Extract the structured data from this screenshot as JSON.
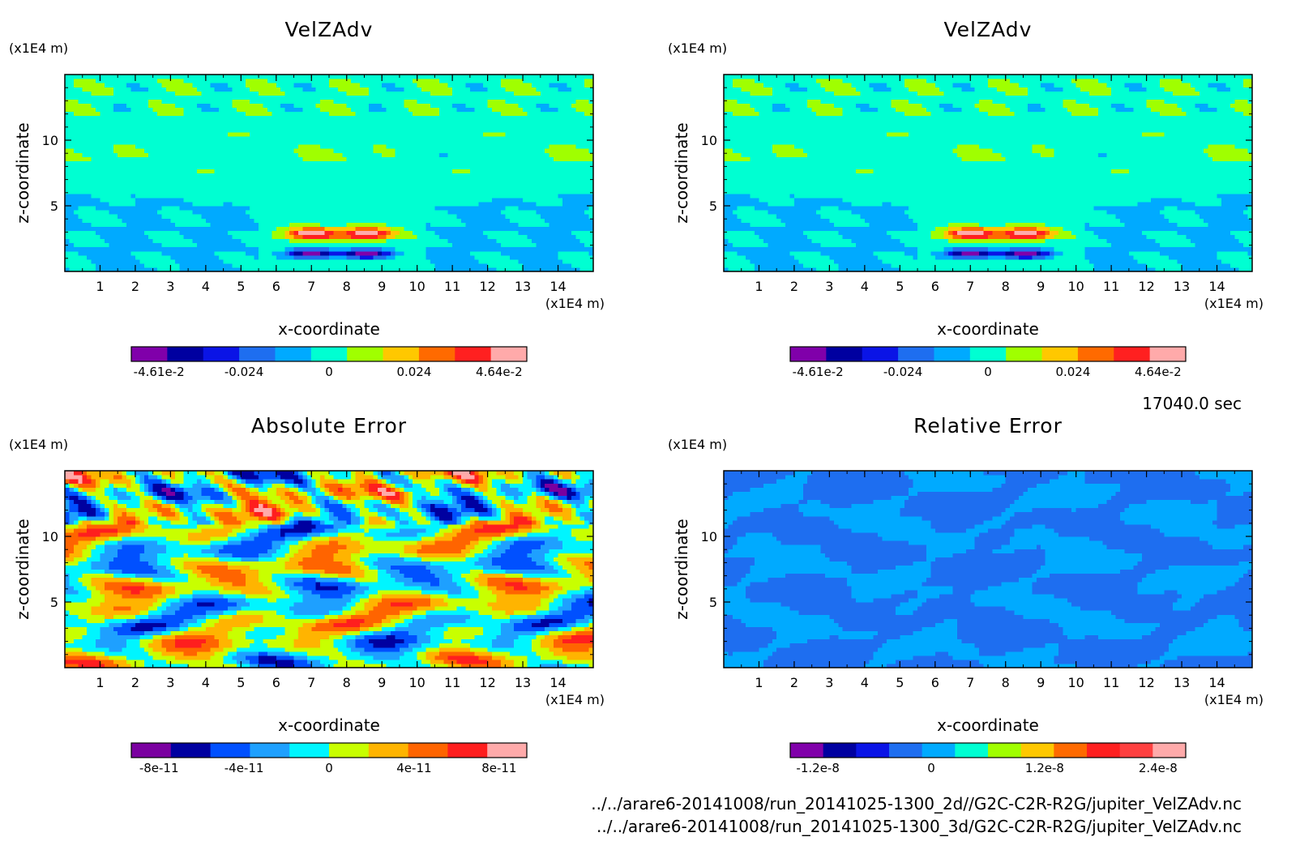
{
  "colors": {
    "scale11": [
      "#8000aa",
      "#0000a0",
      "#0a14e6",
      "#1e6ef0",
      "#00aaff",
      "#00ffd2",
      "#a0ff00",
      "#ffc800",
      "#ff6a00",
      "#ff2020",
      "#ff4040",
      "#ffaaaa"
    ],
    "absErrorScale": [
      "#7a00a0",
      "#0000a0",
      "#0050ff",
      "#1ea0ff",
      "#00f5ff",
      "#c8ff00",
      "#ffb400",
      "#ff6400",
      "#ff1e1e",
      "#ffaaaa"
    ]
  },
  "time_label": "17040.0 sec",
  "footer": {
    "line1": "../../arare6-20141008/run_20141025-1300_2d//G2C-C2R-R2G/jupiter_VelZAdv.nc",
    "line2": "../../arare6-20141008/run_20141025-1300_3d/G2C-C2R-R2G/jupiter_VelZAdv.nc"
  },
  "chart_data": [
    {
      "type": "heatmap",
      "title": "VelZAdv",
      "xlabel": "x-coordinate",
      "ylabel": "z-coordinate",
      "x_unit": "(x1E4 m)",
      "y_unit": "(x1E4 m)",
      "xticks": [
        "1",
        "2",
        "3",
        "4",
        "5",
        "6",
        "7",
        "8",
        "9",
        "10",
        "11",
        "12",
        "13",
        "14"
      ],
      "yticks": [
        "5",
        "10"
      ],
      "xlim": [
        0,
        15
      ],
      "ylim": [
        0,
        15
      ],
      "colorbar": {
        "labels": [
          "-4.61e-2",
          "-0.024",
          "0",
          "0.024",
          "4.64e-2"
        ],
        "range": [
          -0.0461,
          0.0464
        ],
        "levels": 11
      },
      "field": "velzadv"
    },
    {
      "type": "heatmap",
      "title": "VelZAdv",
      "xlabel": "x-coordinate",
      "ylabel": "z-coordinate",
      "x_unit": "(x1E4 m)",
      "y_unit": "(x1E4 m)",
      "xticks": [
        "1",
        "2",
        "3",
        "4",
        "5",
        "6",
        "7",
        "8",
        "9",
        "10",
        "11",
        "12",
        "13",
        "14"
      ],
      "yticks": [
        "5",
        "10"
      ],
      "xlim": [
        0,
        15
      ],
      "ylim": [
        0,
        15
      ],
      "colorbar": {
        "labels": [
          "-4.61e-2",
          "-0.024",
          "0",
          "0.024",
          "4.64e-2"
        ],
        "range": [
          -0.0461,
          0.0464
        ],
        "levels": 11
      },
      "field": "velzadv"
    },
    {
      "type": "heatmap",
      "title": "Absolute Error",
      "xlabel": "x-coordinate",
      "ylabel": "z-coordinate",
      "x_unit": "(x1E4 m)",
      "y_unit": "(x1E4 m)",
      "xticks": [
        "1",
        "2",
        "3",
        "4",
        "5",
        "6",
        "7",
        "8",
        "9",
        "10",
        "11",
        "12",
        "13",
        "14"
      ],
      "yticks": [
        "5",
        "10"
      ],
      "xlim": [
        0,
        15
      ],
      "ylim": [
        0,
        15
      ],
      "colorbar": {
        "labels": [
          "-8e-11",
          "-4e-11",
          "0",
          "4e-11",
          "8e-11"
        ],
        "range": [
          -1e-10,
          1e-10
        ],
        "levels": 10
      },
      "field": "abserror"
    },
    {
      "type": "heatmap",
      "title": "Relative Error",
      "xlabel": "x-coordinate",
      "ylabel": "z-coordinate",
      "x_unit": "(x1E4 m)",
      "y_unit": "(x1E4 m)",
      "xticks": [
        "1",
        "2",
        "3",
        "4",
        "5",
        "6",
        "7",
        "8",
        "9",
        "10",
        "11",
        "12",
        "13",
        "14"
      ],
      "yticks": [
        "5",
        "10"
      ],
      "xlim": [
        0,
        15
      ],
      "ylim": [
        0,
        15
      ],
      "colorbar": {
        "labels": [
          "-1.2e-8",
          "0",
          "1.2e-8",
          "2.4e-8"
        ],
        "range": [
          -2.4e-08,
          3.6e-08
        ],
        "levels": 12
      },
      "field": "relerror"
    }
  ]
}
